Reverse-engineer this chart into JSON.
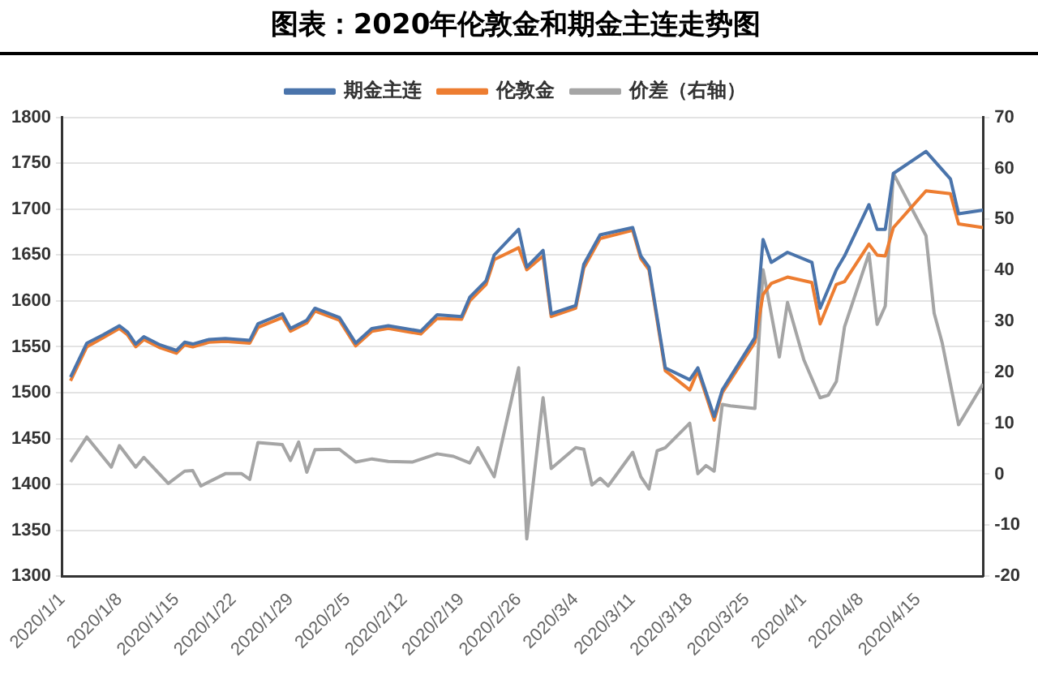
{
  "chart_data": {
    "type": "line",
    "title": "图表：2020年伦敦金和期金主连走势图",
    "x": [
      "2020-01-02",
      "2020-01-04",
      "2020-01-06",
      "2020-01-08",
      "2020-01-09",
      "2020-01-10",
      "2020-01-11",
      "2020-01-13",
      "2020-01-15",
      "2020-01-16",
      "2020-01-17",
      "2020-01-19",
      "2020-01-21",
      "2020-01-24",
      "2020-01-25",
      "2020-01-28",
      "2020-01-29",
      "2020-01-31",
      "2020-02-01",
      "2020-02-04",
      "2020-02-06",
      "2020-02-08",
      "2020-02-10",
      "2020-02-14",
      "2020-02-16",
      "2020-02-19",
      "2020-02-20",
      "2020-02-22",
      "2020-02-23",
      "2020-02-26",
      "2020-02-27",
      "2020-02-29",
      "2020-03-01",
      "2020-03-04",
      "2020-03-05",
      "2020-03-07",
      "2020-03-11",
      "2020-03-12",
      "2020-03-13",
      "2020-03-15",
      "2020-03-18",
      "2020-03-19",
      "2020-03-21",
      "2020-03-22",
      "2020-03-26",
      "2020-03-27",
      "2020-03-28",
      "2020-03-30",
      "2020-04-02",
      "2020-04-03",
      "2020-04-05",
      "2020-04-06",
      "2020-04-09",
      "2020-04-10",
      "2020-04-11",
      "2020-04-12",
      "2020-04-16",
      "2020-04-19",
      "2020-04-20",
      "2020-04-23"
    ],
    "series": [
      {
        "name": "期金主连",
        "color": "#4a74ab",
        "values": [
          1517,
          1554,
          1563,
          1573,
          1566,
          1553,
          1561,
          1552,
          1546,
          1555,
          1553,
          1558,
          1559,
          1557,
          1575,
          1586,
          1570,
          1579,
          1592,
          1582,
          1554,
          1570,
          1573,
          1567,
          1585,
          1583,
          1604,
          1622,
          1650,
          1678,
          1637,
          1655,
          1586,
          1595,
          1640,
          1672,
          1680,
          1649,
          1637,
          1527,
          1514,
          1527,
          1474,
          1503,
          1560,
          1667,
          1642,
          1653,
          1642,
          1592,
          1634,
          1649,
          1705,
          1678,
          1678,
          1739,
          1763,
          1733,
          1695,
          1699
        ]
      },
      {
        "name": "伦敦金",
        "color": "#ed7d31",
        "values": [
          1513,
          1550,
          1560,
          1570,
          1563,
          1550,
          1558,
          1549,
          1543,
          1552,
          1550,
          1555,
          1556,
          1554,
          1571,
          1582,
          1567,
          1576,
          1589,
          1579,
          1551,
          1567,
          1570,
          1564,
          1581,
          1580,
          1600,
          1618,
          1645,
          1658,
          1634,
          1649,
          1583,
          1592,
          1636,
          1668,
          1677,
          1646,
          1634,
          1524,
          1503,
          1524,
          1470,
          1500,
          1555,
          1607,
          1619,
          1626,
          1620,
          1575,
          1618,
          1621,
          1662,
          1650,
          1649,
          1680,
          1720,
          1717,
          1684,
          1680
        ]
      },
      {
        "name": "价差（右轴）",
        "color": "#a5a5a5",
        "axis": "y2",
        "x": [
          "2020-01-02",
          "2020-01-04",
          "2020-01-07",
          "2020-01-08",
          "2020-01-10",
          "2020-01-11",
          "2020-01-14",
          "2020-01-16",
          "2020-01-17",
          "2020-01-18",
          "2020-01-21",
          "2020-01-23",
          "2020-01-24",
          "2020-01-25",
          "2020-01-28",
          "2020-01-29",
          "2020-01-30",
          "2020-01-31",
          "2020-02-01",
          "2020-02-04",
          "2020-02-06",
          "2020-02-08",
          "2020-02-10",
          "2020-02-13",
          "2020-02-16",
          "2020-02-18",
          "2020-02-20",
          "2020-02-21",
          "2020-02-23",
          "2020-02-26",
          "2020-02-27",
          "2020-02-29",
          "2020-03-01",
          "2020-03-04",
          "2020-03-05",
          "2020-03-06",
          "2020-03-07",
          "2020-03-08",
          "2020-03-11",
          "2020-03-12",
          "2020-03-13",
          "2020-03-14",
          "2020-03-15",
          "2020-03-18",
          "2020-03-19",
          "2020-03-20",
          "2020-03-21",
          "2020-03-22",
          "2020-03-23",
          "2020-03-26",
          "2020-03-27",
          "2020-03-29",
          "2020-03-30",
          "2020-04-01",
          "2020-04-03",
          "2020-04-04",
          "2020-04-05",
          "2020-04-06",
          "2020-04-09",
          "2020-04-10",
          "2020-04-11",
          "2020-04-12",
          "2020-04-16",
          "2020-04-17",
          "2020-04-18",
          "2020-04-20",
          "2020-04-23"
        ],
        "values": [
          2.4,
          7.3,
          1.4,
          5.6,
          1.4,
          3.3,
          -1.8,
          0.6,
          0.7,
          -2.3,
          0.1,
          0.1,
          -1.0,
          6.2,
          5.8,
          2.7,
          6.3,
          0.4,
          4.8,
          4.9,
          2.4,
          3.0,
          2.5,
          2.4,
          4.0,
          3.5,
          2.2,
          5.2,
          -0.5,
          20.9,
          -12.7,
          15.0,
          1.1,
          5.2,
          4.9,
          -2.1,
          -0.8,
          -2.3,
          4.3,
          -0.5,
          -2.9,
          4.6,
          5.2,
          10.0,
          0.1,
          1.7,
          0.6,
          13.7,
          13.4,
          12.9,
          40.1,
          23.0,
          33.7,
          22.5,
          15.0,
          15.5,
          18.2,
          28.9,
          43.3,
          29.4,
          33.0,
          59.0,
          46.8,
          31.6,
          25.7,
          9.7,
          17.7
        ]
      }
    ],
    "xlim": [
      "2020-01-01",
      "2020-04-23"
    ],
    "xticks": [
      {
        "value": "2020-01-01",
        "label": "2020/1/1"
      },
      {
        "value": "2020-01-08",
        "label": "2020/1/8"
      },
      {
        "value": "2020-01-15",
        "label": "2020/1/15"
      },
      {
        "value": "2020-01-22",
        "label": "2020/1/22"
      },
      {
        "value": "2020-01-29",
        "label": "2020/1/29"
      },
      {
        "value": "2020-02-05",
        "label": "2020/2/5"
      },
      {
        "value": "2020-02-12",
        "label": "2020/2/12"
      },
      {
        "value": "2020-02-19",
        "label": "2020/2/19"
      },
      {
        "value": "2020-02-26",
        "label": "2020/2/26"
      },
      {
        "value": "2020-03-04",
        "label": "2020/3/4"
      },
      {
        "value": "2020-03-11",
        "label": "2020/3/11"
      },
      {
        "value": "2020-03-18",
        "label": "2020/3/18"
      },
      {
        "value": "2020-03-25",
        "label": "2020/3/25"
      },
      {
        "value": "2020-04-01",
        "label": "2020/4/1"
      },
      {
        "value": "2020-04-08",
        "label": "2020/4/8"
      },
      {
        "value": "2020-04-15",
        "label": "2020/4/15"
      }
    ],
    "ylim": [
      1300,
      1800
    ],
    "yticks": [
      1300,
      1350,
      1400,
      1450,
      1500,
      1550,
      1600,
      1650,
      1700,
      1750,
      1800
    ],
    "y2lim": [
      -20,
      70
    ],
    "y2ticks": [
      -20,
      -10,
      0,
      10,
      20,
      30,
      40,
      50,
      60,
      70
    ],
    "grid": "y",
    "legend": "top",
    "marker": "none",
    "line_style": "solid"
  }
}
